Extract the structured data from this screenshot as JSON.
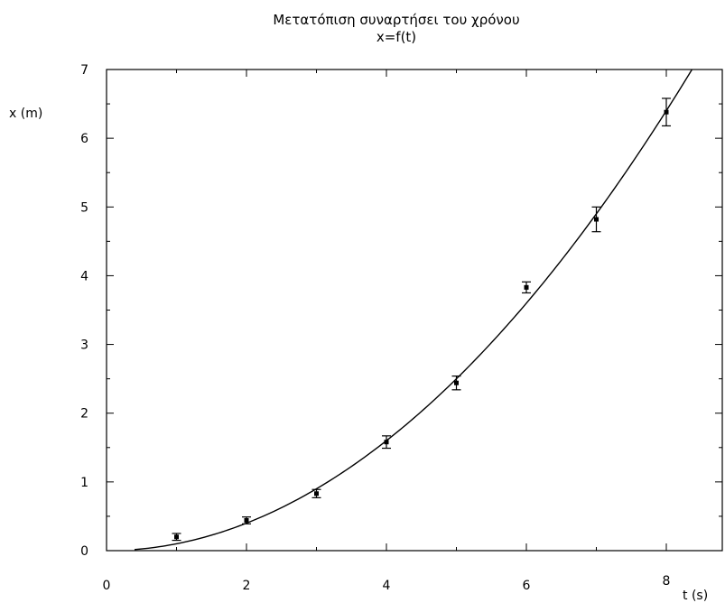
{
  "chart_data": {
    "type": "scatter",
    "title": "Μετατόπιση συναρτήσει του χρόνου",
    "subtitle": "x=f(t)",
    "xlabel": "t (s)",
    "ylabel": "x (m)",
    "xlim": [
      0,
      8.8
    ],
    "ylim": [
      0,
      7
    ],
    "xticks": [
      0,
      2,
      4,
      6,
      8
    ],
    "yticks": [
      0,
      1,
      2,
      3,
      4,
      5,
      6,
      7
    ],
    "grid": false,
    "series": [
      {
        "kind": "points_with_error_bars",
        "points": [
          {
            "x": 1,
            "y": 0.2,
            "err": 0.05
          },
          {
            "x": 2,
            "y": 0.44,
            "err": 0.05
          },
          {
            "x": 3,
            "y": 0.83,
            "err": 0.06
          },
          {
            "x": 4,
            "y": 1.58,
            "err": 0.09
          },
          {
            "x": 5,
            "y": 2.44,
            "err": 0.1
          },
          {
            "x": 6,
            "y": 3.83,
            "err": 0.08
          },
          {
            "x": 7,
            "y": 4.82,
            "err": 0.18
          },
          {
            "x": 8,
            "y": 6.38,
            "err": 0.2
          }
        ]
      },
      {
        "kind": "fit_curve",
        "equation": "x = 0.1 t^2",
        "coefficient": 0.1,
        "t_start": 0.4
      }
    ]
  }
}
